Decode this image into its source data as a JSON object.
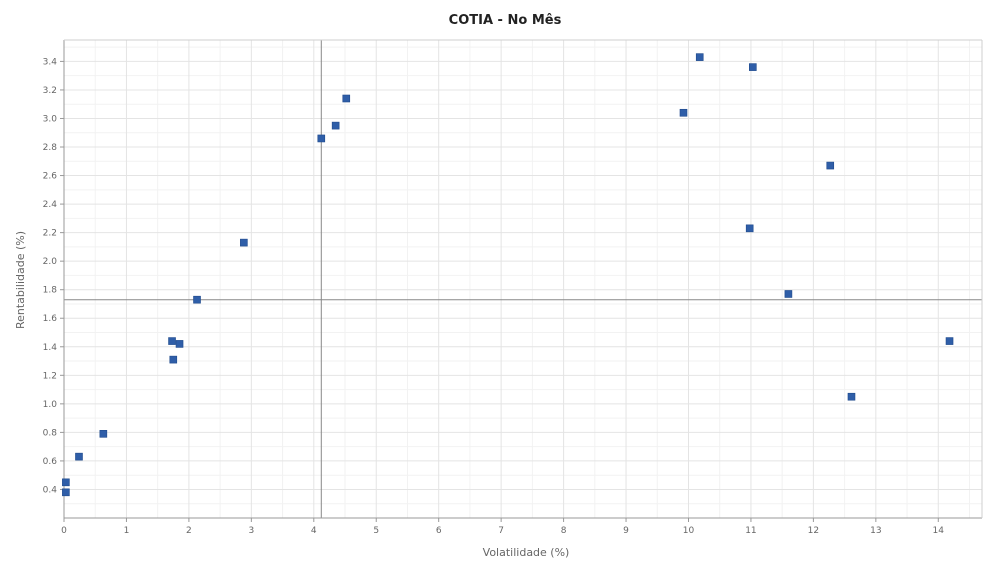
{
  "chart_data": {
    "type": "scatter",
    "title": "COTIA - No Mês",
    "xlabel": "Volatilidade (%)",
    "ylabel": "Rentabilidade (%)",
    "xlim": [
      0,
      14.7
    ],
    "ylim": [
      0.2,
      3.55
    ],
    "x_ticks": [
      0,
      1,
      2,
      3,
      4,
      5,
      6,
      7,
      8,
      9,
      10,
      11,
      12,
      13,
      14
    ],
    "y_ticks": [
      0.4,
      0.6,
      0.8,
      1.0,
      1.2,
      1.4,
      1.6,
      1.8,
      2.0,
      2.2,
      2.4,
      2.6,
      2.8,
      3.0,
      3.2,
      3.4
    ],
    "x_tick_labels": [
      "0",
      "1",
      "2",
      "3",
      "4",
      "5",
      "6",
      "7",
      "8",
      "9",
      "10",
      "11",
      "12",
      "13",
      "14"
    ],
    "y_tick_labels": [
      "0.4",
      "0.6",
      "0.8",
      "1.0",
      "1.2",
      "1.4",
      "1.6",
      "1.8",
      "2.0",
      "2.2",
      "2.4",
      "2.6",
      "2.8",
      "3.0",
      "3.2",
      "3.4"
    ],
    "grid": true,
    "reference_lines": {
      "x": 4.12,
      "y": 1.73
    },
    "marker_color": "#2f5ea8",
    "points": [
      {
        "x": 0.03,
        "y": 0.45
      },
      {
        "x": 0.03,
        "y": 0.38
      },
      {
        "x": 0.24,
        "y": 0.63
      },
      {
        "x": 0.63,
        "y": 0.79
      },
      {
        "x": 1.73,
        "y": 1.44
      },
      {
        "x": 1.85,
        "y": 1.42
      },
      {
        "x": 1.75,
        "y": 1.31
      },
      {
        "x": 2.13,
        "y": 1.73
      },
      {
        "x": 2.88,
        "y": 2.13
      },
      {
        "x": 4.12,
        "y": 2.86
      },
      {
        "x": 4.35,
        "y": 2.95
      },
      {
        "x": 4.52,
        "y": 3.14
      },
      {
        "x": 9.92,
        "y": 3.04
      },
      {
        "x": 10.18,
        "y": 3.43
      },
      {
        "x": 11.03,
        "y": 3.36
      },
      {
        "x": 10.98,
        "y": 2.23
      },
      {
        "x": 12.27,
        "y": 2.67
      },
      {
        "x": 11.6,
        "y": 1.77
      },
      {
        "x": 12.61,
        "y": 1.05
      },
      {
        "x": 14.18,
        "y": 1.44
      }
    ]
  }
}
